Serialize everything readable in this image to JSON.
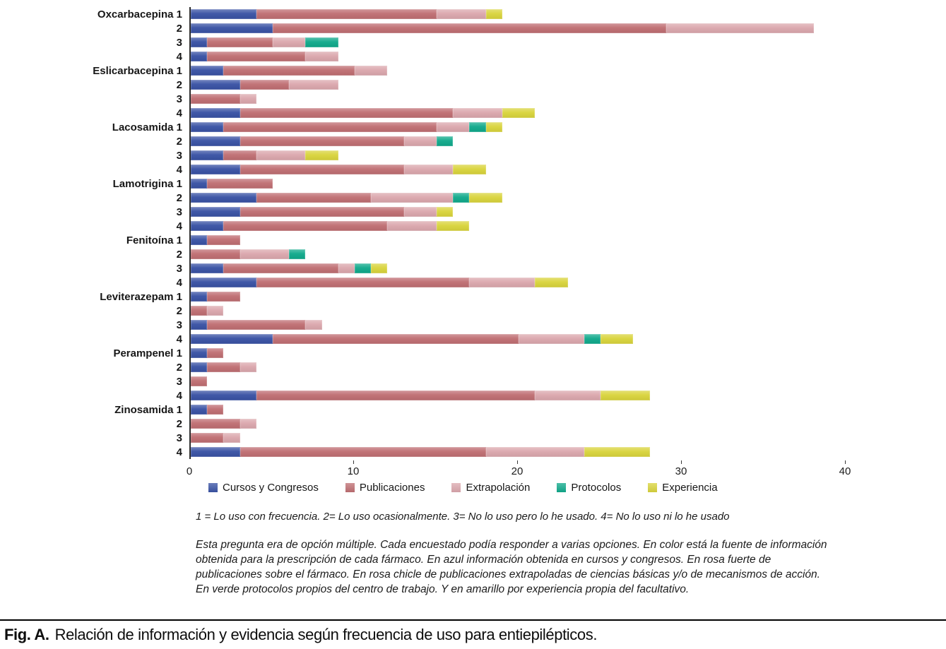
{
  "figure": {
    "caption_label": "Fig. A.",
    "caption_text": "Relación de información y evidencia según frecuencia de uso para entiepilépticos."
  },
  "footnotes": {
    "line1": "1 = Lo uso con frecuencia. 2= Lo uso ocasionalmente. 3= No lo uso pero lo he usado. 4= No lo uso ni lo he usado",
    "paragraph": "Esta pregunta era de opción múltiple. Cada encuestado podía responder a varias opciones. En color está la fuente de información obtenida para la prescripción de cada fármaco. En azul información obtenida en cursos y congresos. En rosa fuerte de publicaciones sobre el fármaco. En rosa chicle de publicaciones extrapoladas de ciencias básicas y/o de mecanismos de acción. En verde protocolos propios del centro de trabajo. Y en amarillo por experiencia propia del facultativo."
  },
  "chart_data": {
    "type": "bar",
    "orientation": "horizontal",
    "stacked": true,
    "title": "",
    "xlabel": "",
    "ylabel": "",
    "xlim": [
      0,
      40
    ],
    "x_ticks": [
      0,
      10,
      20,
      30,
      40
    ],
    "grid": false,
    "legend_position": "bottom",
    "legend": [
      {
        "label": "Cursos y Congresos",
        "color": "#3952a4"
      },
      {
        "label": "Publicaciones",
        "color": "#bf6e72"
      },
      {
        "label": "Extrapolación",
        "color": "#dba7ad"
      },
      {
        "label": "Protocolos",
        "color": "#10a98b"
      },
      {
        "label": "Experiencia",
        "color": "#d9d43c"
      }
    ],
    "response_scale": [
      "1",
      "2",
      "3",
      "4"
    ],
    "rows": [
      {
        "drug": "Oxcarbacepina",
        "response": "1",
        "values": [
          4,
          11,
          3,
          0,
          1
        ]
      },
      {
        "drug": "Oxcarbacepina",
        "response": "2",
        "values": [
          5,
          24,
          9,
          0,
          0
        ]
      },
      {
        "drug": "Oxcarbacepina",
        "response": "3",
        "values": [
          1,
          4,
          2,
          2,
          0
        ]
      },
      {
        "drug": "Oxcarbacepina",
        "response": "4",
        "values": [
          1,
          6,
          2,
          0,
          0
        ]
      },
      {
        "drug": "Eslicarbacepina",
        "response": "1",
        "values": [
          2,
          8,
          2,
          0,
          0
        ]
      },
      {
        "drug": "Eslicarbacepina",
        "response": "2",
        "values": [
          3,
          3,
          3,
          0,
          0
        ]
      },
      {
        "drug": "Eslicarbacepina",
        "response": "3",
        "values": [
          0,
          3,
          1,
          0,
          0
        ]
      },
      {
        "drug": "Eslicarbacepina",
        "response": "4",
        "values": [
          3,
          13,
          3,
          0,
          2
        ]
      },
      {
        "drug": "Lacosamida",
        "response": "1",
        "values": [
          2,
          13,
          2,
          1,
          1
        ]
      },
      {
        "drug": "Lacosamida",
        "response": "2",
        "values": [
          3,
          10,
          2,
          1,
          0
        ]
      },
      {
        "drug": "Lacosamida",
        "response": "3",
        "values": [
          2,
          2,
          3,
          0,
          2
        ]
      },
      {
        "drug": "Lacosamida",
        "response": "4",
        "values": [
          3,
          10,
          3,
          0,
          2
        ]
      },
      {
        "drug": "Lamotrigina",
        "response": "1",
        "values": [
          1,
          4,
          0,
          0,
          0
        ]
      },
      {
        "drug": "Lamotrigina",
        "response": "2",
        "values": [
          4,
          7,
          5,
          1,
          2
        ]
      },
      {
        "drug": "Lamotrigina",
        "response": "3",
        "values": [
          3,
          10,
          2,
          0,
          1
        ]
      },
      {
        "drug": "Lamotrigina",
        "response": "4",
        "values": [
          2,
          10,
          3,
          0,
          2
        ]
      },
      {
        "drug": "Fenitoína",
        "response": "1",
        "values": [
          1,
          2,
          0,
          0,
          0
        ]
      },
      {
        "drug": "Fenitoína",
        "response": "2",
        "values": [
          0,
          3,
          3,
          1,
          0
        ]
      },
      {
        "drug": "Fenitoína",
        "response": "3",
        "values": [
          2,
          7,
          1,
          1,
          1
        ]
      },
      {
        "drug": "Fenitoína",
        "response": "4",
        "values": [
          4,
          13,
          4,
          0,
          2
        ]
      },
      {
        "drug": "Leviterazepam",
        "response": "1",
        "values": [
          1,
          2,
          0,
          0,
          0
        ]
      },
      {
        "drug": "Leviterazepam",
        "response": "2",
        "values": [
          0,
          1,
          1,
          0,
          0
        ]
      },
      {
        "drug": "Leviterazepam",
        "response": "3",
        "values": [
          1,
          6,
          1,
          0,
          0
        ]
      },
      {
        "drug": "Leviterazepam",
        "response": "4",
        "values": [
          5,
          15,
          4,
          1,
          2
        ]
      },
      {
        "drug": "Perampenel",
        "response": "1",
        "values": [
          1,
          1,
          0,
          0,
          0
        ]
      },
      {
        "drug": "Perampenel",
        "response": "2",
        "values": [
          1,
          2,
          1,
          0,
          0
        ]
      },
      {
        "drug": "Perampenel",
        "response": "3",
        "values": [
          0,
          1,
          0,
          0,
          0
        ]
      },
      {
        "drug": "Perampenel",
        "response": "4",
        "values": [
          4,
          17,
          4,
          0,
          3
        ]
      },
      {
        "drug": "Zinosamida",
        "response": "1",
        "values": [
          1,
          1,
          0,
          0,
          0
        ]
      },
      {
        "drug": "Zinosamida",
        "response": "2",
        "values": [
          0,
          3,
          1,
          0,
          0
        ]
      },
      {
        "drug": "Zinosamida",
        "response": "3",
        "values": [
          0,
          2,
          1,
          0,
          0
        ]
      },
      {
        "drug": "Zinosamida",
        "response": "4",
        "values": [
          3,
          15,
          6,
          0,
          4
        ]
      }
    ]
  }
}
